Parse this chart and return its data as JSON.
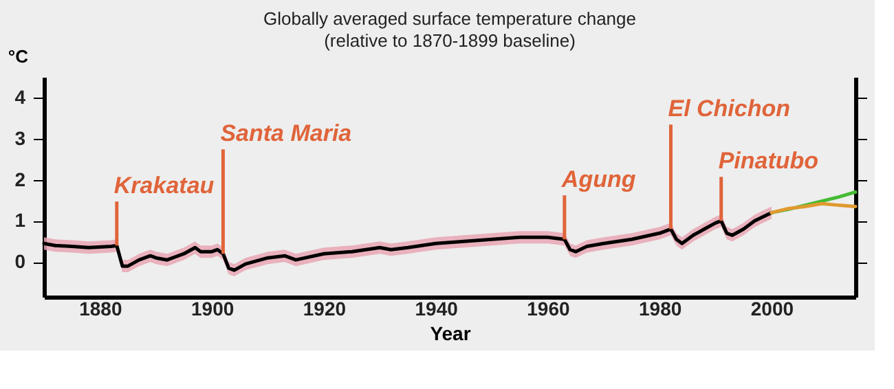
{
  "chart_data": {
    "type": "line",
    "title": "Globally averaged surface temperature change",
    "subtitle": "(relative to 1870-1899 baseline)",
    "xlabel": "Year",
    "ylabel": "°C",
    "xlim": [
      1870,
      2015
    ],
    "xticks": [
      1880,
      1900,
      1920,
      1940,
      1960,
      1980,
      2000
    ],
    "ylim": [
      -0.85,
      4.5
    ],
    "yticks": [
      0,
      1,
      2,
      3,
      4
    ],
    "grid": false,
    "legend": false,
    "marker": "none",
    "line_style": "solid",
    "series": [
      {
        "color": "#000000",
        "x": [
          1870,
          1872,
          1875,
          1878,
          1882,
          1883,
          1884,
          1885,
          1887,
          1889,
          1890,
          1892,
          1895,
          1897,
          1898,
          1900,
          1901,
          1902,
          1903,
          1904,
          1906,
          1910,
          1913,
          1915,
          1920,
          1925,
          1930,
          1932,
          1935,
          1940,
          1945,
          1950,
          1955,
          1960,
          1963,
          1964,
          1965,
          1967,
          1970,
          1975,
          1980,
          1982,
          1983,
          1984,
          1986,
          1988,
          1990,
          1991,
          1992,
          1993,
          1995,
          1997,
          2000
        ],
        "values": [
          0.45,
          0.4,
          0.38,
          0.35,
          0.38,
          0.4,
          -0.1,
          -0.1,
          0.05,
          0.15,
          0.1,
          0.05,
          0.2,
          0.35,
          0.25,
          0.25,
          0.3,
          0.2,
          -0.15,
          -0.2,
          -0.05,
          0.1,
          0.15,
          0.05,
          0.2,
          0.25,
          0.35,
          0.3,
          0.35,
          0.45,
          0.5,
          0.55,
          0.6,
          0.6,
          0.55,
          0.3,
          0.25,
          0.38,
          0.45,
          0.55,
          0.7,
          0.8,
          0.55,
          0.45,
          0.65,
          0.8,
          0.95,
          1.0,
          0.7,
          0.65,
          0.8,
          1.0,
          1.2
        ],
        "lower": [
          0.3,
          0.25,
          0.23,
          0.2,
          0.23,
          0.25,
          -0.25,
          -0.25,
          -0.1,
          0.0,
          -0.05,
          -0.1,
          0.05,
          0.2,
          0.1,
          0.1,
          0.15,
          0.05,
          -0.3,
          -0.35,
          -0.2,
          -0.05,
          0.0,
          -0.1,
          0.05,
          0.1,
          0.2,
          0.15,
          0.2,
          0.3,
          0.35,
          0.4,
          0.45,
          0.45,
          0.4,
          0.15,
          0.1,
          0.23,
          0.3,
          0.4,
          0.55,
          0.65,
          0.4,
          0.3,
          0.5,
          0.65,
          0.8,
          0.85,
          0.55,
          0.5,
          0.65,
          0.85,
          1.05
        ],
        "upper": [
          0.6,
          0.55,
          0.53,
          0.5,
          0.53,
          0.55,
          0.05,
          0.05,
          0.2,
          0.3,
          0.25,
          0.2,
          0.35,
          0.5,
          0.4,
          0.4,
          0.45,
          0.35,
          0.0,
          -0.05,
          0.1,
          0.25,
          0.3,
          0.2,
          0.35,
          0.4,
          0.5,
          0.45,
          0.5,
          0.6,
          0.65,
          0.7,
          0.75,
          0.75,
          0.7,
          0.45,
          0.4,
          0.53,
          0.6,
          0.7,
          0.85,
          0.95,
          0.7,
          0.6,
          0.8,
          0.95,
          1.1,
          1.15,
          0.85,
          0.8,
          0.95,
          1.15,
          1.35
        ]
      },
      {
        "color": "#44bb33",
        "x": [
          2000,
          2003,
          2006,
          2009,
          2012,
          2015
        ],
        "values": [
          1.2,
          1.28,
          1.38,
          1.48,
          1.58,
          1.7
        ]
      },
      {
        "color": "#e09a30",
        "x": [
          2000,
          2003,
          2006,
          2009,
          2012,
          2015
        ],
        "values": [
          1.2,
          1.3,
          1.35,
          1.42,
          1.38,
          1.35
        ]
      }
    ],
    "ref_lines": [
      {
        "axis": "x",
        "value": 1883,
        "label": "Krakatau",
        "color": "#e0643a"
      },
      {
        "axis": "x",
        "value": 1902,
        "label": "Santa Maria",
        "color": "#e0643a"
      },
      {
        "axis": "x",
        "value": 1963,
        "label": "Agung",
        "color": "#e0643a"
      },
      {
        "axis": "x",
        "value": 1982,
        "label": "El Chichon",
        "color": "#e0643a"
      },
      {
        "axis": "x",
        "value": 1991,
        "label": "Pinatubo",
        "color": "#e0643a"
      }
    ]
  }
}
